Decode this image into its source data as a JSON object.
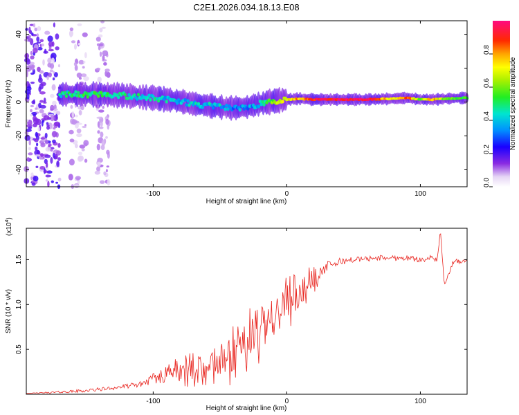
{
  "page": {
    "title": "C2E1.2026.034.18.13.E08"
  },
  "chart_data": [
    {
      "type": "heatmap",
      "title": "C2E1.2026.034.18.13.E08",
      "xlabel": "Height of straight line (km)",
      "ylabel": "Frequency (Hz)",
      "xlim": [
        -195,
        135
      ],
      "ylim": [
        -50,
        48
      ],
      "xticks": [
        "-100",
        "0",
        "100"
      ],
      "yticks": [
        "-40",
        "-20",
        "0",
        "20",
        "40"
      ],
      "track": {
        "x": [
          -170,
          -155,
          -140,
          -125,
          -110,
          -100,
          -90,
          -80,
          -70,
          -60,
          -50,
          -40,
          -30,
          -20,
          -10,
          0,
          10,
          20,
          40,
          60,
          80,
          90,
          100,
          110,
          120,
          135
        ],
        "frequency": [
          4.5,
          4.5,
          4.5,
          4.0,
          3.0,
          2.5,
          1.5,
          0.5,
          -1.0,
          -2.0,
          -3.0,
          -3.5,
          -3.0,
          -1.0,
          0.5,
          1.5,
          2.0,
          1.5,
          1.5,
          1.5,
          2.0,
          2.5,
          1.5,
          1.5,
          2.0,
          2.5
        ],
        "amplitude": [
          0.45,
          0.5,
          0.5,
          0.45,
          0.45,
          0.45,
          0.4,
          0.4,
          0.4,
          0.4,
          0.4,
          0.35,
          0.35,
          0.4,
          0.6,
          0.7,
          0.8,
          0.9,
          0.95,
          0.95,
          0.7,
          0.9,
          0.6,
          0.8,
          0.55,
          0.5
        ]
      },
      "noise_regions": [
        [
          -195,
          -170
        ],
        [
          -162,
          -150
        ],
        [
          -142,
          -133
        ]
      ]
    },
    {
      "type": "colorbar",
      "label": "Normalized spectral amplitude",
      "range": [
        0,
        1
      ],
      "ticks": [
        "0.0",
        "0.2",
        "0.4",
        "0.6",
        "0.8"
      ]
    },
    {
      "type": "line",
      "xlabel": "Height of straight line (km)",
      "ylabel": "SNR (10 * v/v)",
      "yscale_label": "(x10",
      "yscale_exp": "4",
      "yscale_close": ")",
      "xlim": [
        -195,
        135
      ],
      "ylim": [
        0,
        1.85
      ],
      "xticks": [
        "-100",
        "0",
        "100"
      ],
      "yticks": [
        "0.5",
        "1.0",
        "1.5"
      ],
      "series": [
        {
          "name": "SNR",
          "color": "#e8221c",
          "x": [
            -195,
            -175,
            -150,
            -130,
            -110,
            -100,
            -90,
            -80,
            -70,
            -60,
            -50,
            -40,
            -30,
            -20,
            -10,
            0,
            10,
            20,
            30,
            40,
            50,
            70,
            90,
            100,
            108,
            113,
            115,
            118,
            125,
            135
          ],
          "y": [
            0.01,
            0.02,
            0.04,
            0.07,
            0.11,
            0.17,
            0.22,
            0.25,
            0.28,
            0.32,
            0.38,
            0.44,
            0.58,
            0.75,
            0.9,
            1.02,
            1.12,
            1.3,
            1.42,
            1.48,
            1.5,
            1.52,
            1.52,
            1.5,
            1.52,
            1.5,
            1.85,
            1.2,
            1.48,
            1.48
          ],
          "noise": [
            0.0,
            0.01,
            0.02,
            0.02,
            0.03,
            0.06,
            0.09,
            0.1,
            0.12,
            0.14,
            0.17,
            0.2,
            0.22,
            0.25,
            0.2,
            0.18,
            0.15,
            0.1,
            0.06,
            0.04,
            0.03,
            0.03,
            0.03,
            0.03,
            0.03,
            0.03,
            0.03,
            0.03,
            0.03,
            0.02
          ]
        }
      ]
    }
  ]
}
